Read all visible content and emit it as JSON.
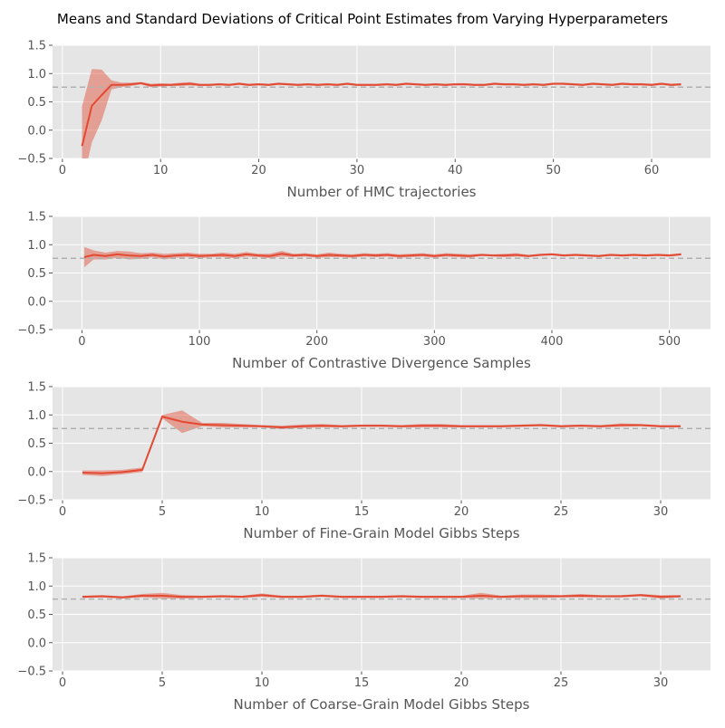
{
  "figure": {
    "title": "Means and Standard Deviations of Critical Point Estimates from Varying Hyperparameters"
  },
  "colors": {
    "line": "#e24a33",
    "band": "#e24a33",
    "reference": "#b0b0b0",
    "panel_bg": "#e5e5e5",
    "grid": "#ffffff",
    "tick_text": "#555555"
  },
  "chart_data": [
    {
      "type": "line",
      "title": "",
      "xlabel": "Number of HMC trajectories",
      "ylabel": "",
      "xlim": [
        -1,
        66
      ],
      "ylim": [
        -0.5,
        1.5
      ],
      "xticks": [
        0,
        10,
        20,
        30,
        40,
        50,
        60
      ],
      "yticks": [
        -0.5,
        0.0,
        0.5,
        1.0,
        1.5
      ],
      "ytick_labels": [
        "−0.5",
        "0.0",
        "0.5",
        "1.0",
        "1.5"
      ],
      "reference_line": 0.76,
      "grid": true,
      "x": [
        2,
        3,
        4,
        5,
        6,
        7,
        8,
        9,
        10,
        11,
        12,
        13,
        14,
        15,
        16,
        17,
        18,
        19,
        20,
        21,
        22,
        23,
        24,
        25,
        26,
        27,
        28,
        29,
        30,
        31,
        32,
        33,
        34,
        35,
        36,
        37,
        38,
        39,
        40,
        41,
        42,
        43,
        44,
        45,
        46,
        47,
        48,
        49,
        50,
        51,
        52,
        53,
        54,
        55,
        56,
        57,
        58,
        59,
        60,
        61,
        62,
        63
      ],
      "mean": [
        -0.28,
        0.43,
        0.62,
        0.8,
        0.8,
        0.81,
        0.83,
        0.79,
        0.8,
        0.8,
        0.81,
        0.82,
        0.8,
        0.8,
        0.81,
        0.8,
        0.82,
        0.8,
        0.81,
        0.8,
        0.82,
        0.81,
        0.8,
        0.81,
        0.8,
        0.81,
        0.8,
        0.82,
        0.8,
        0.8,
        0.8,
        0.81,
        0.8,
        0.82,
        0.81,
        0.8,
        0.81,
        0.8,
        0.81,
        0.81,
        0.8,
        0.8,
        0.82,
        0.81,
        0.81,
        0.8,
        0.81,
        0.8,
        0.82,
        0.82,
        0.81,
        0.8,
        0.82,
        0.81,
        0.8,
        0.82,
        0.81,
        0.81,
        0.8,
        0.82,
        0.8,
        0.81
      ],
      "std": [
        0.7,
        0.65,
        0.45,
        0.08,
        0.04,
        0.03,
        0.02,
        0.03,
        0.03,
        0.02,
        0.03,
        0.03,
        0.02,
        0.02,
        0.02,
        0.02,
        0.02,
        0.02,
        0.02,
        0.02,
        0.02,
        0.02,
        0.02,
        0.02,
        0.02,
        0.02,
        0.02,
        0.02,
        0.02,
        0.02,
        0.02,
        0.02,
        0.02,
        0.02,
        0.02,
        0.02,
        0.02,
        0.02,
        0.02,
        0.02,
        0.02,
        0.02,
        0.02,
        0.02,
        0.02,
        0.02,
        0.02,
        0.02,
        0.02,
        0.02,
        0.02,
        0.02,
        0.02,
        0.02,
        0.02,
        0.02,
        0.02,
        0.02,
        0.02,
        0.02,
        0.02,
        0.02
      ]
    },
    {
      "type": "line",
      "title": "",
      "xlabel": "Number of Contrastive Divergence Samples",
      "ylabel": "",
      "xlim": [
        -25,
        535
      ],
      "ylim": [
        -0.5,
        1.5
      ],
      "xticks": [
        0,
        100,
        200,
        300,
        400,
        500
      ],
      "yticks": [
        -0.5,
        0.0,
        0.5,
        1.0,
        1.5
      ],
      "ytick_labels": [
        "−0.5",
        "0.0",
        "0.5",
        "1.0",
        "1.5"
      ],
      "reference_line": 0.76,
      "grid": true,
      "x": [
        2,
        10,
        20,
        30,
        40,
        50,
        60,
        70,
        80,
        90,
        100,
        110,
        120,
        130,
        140,
        150,
        160,
        170,
        180,
        190,
        200,
        210,
        220,
        230,
        240,
        250,
        260,
        270,
        280,
        290,
        300,
        310,
        320,
        330,
        340,
        350,
        360,
        370,
        380,
        390,
        400,
        410,
        420,
        430,
        440,
        450,
        460,
        470,
        480,
        490,
        500,
        510
      ],
      "mean": [
        0.78,
        0.82,
        0.8,
        0.83,
        0.81,
        0.8,
        0.82,
        0.79,
        0.81,
        0.82,
        0.8,
        0.81,
        0.82,
        0.8,
        0.83,
        0.81,
        0.8,
        0.84,
        0.81,
        0.82,
        0.8,
        0.82,
        0.81,
        0.8,
        0.82,
        0.81,
        0.82,
        0.8,
        0.81,
        0.82,
        0.8,
        0.82,
        0.81,
        0.8,
        0.82,
        0.81,
        0.81,
        0.82,
        0.8,
        0.82,
        0.83,
        0.81,
        0.82,
        0.81,
        0.8,
        0.82,
        0.81,
        0.82,
        0.81,
        0.82,
        0.81,
        0.83
      ],
      "std": [
        0.18,
        0.08,
        0.06,
        0.06,
        0.07,
        0.05,
        0.04,
        0.05,
        0.04,
        0.04,
        0.04,
        0.03,
        0.04,
        0.04,
        0.04,
        0.03,
        0.04,
        0.05,
        0.03,
        0.03,
        0.03,
        0.04,
        0.03,
        0.03,
        0.03,
        0.03,
        0.03,
        0.03,
        0.03,
        0.03,
        0.03,
        0.03,
        0.03,
        0.03,
        0.02,
        0.02,
        0.03,
        0.03,
        0.02,
        0.02,
        0.02,
        0.02,
        0.02,
        0.02,
        0.02,
        0.02,
        0.02,
        0.02,
        0.02,
        0.02,
        0.02,
        0.02
      ]
    },
    {
      "type": "line",
      "title": "",
      "xlabel": "Number of Fine-Grain Model Gibbs Steps",
      "ylabel": "",
      "xlim": [
        -0.5,
        32.5
      ],
      "ylim": [
        -0.5,
        1.5
      ],
      "xticks": [
        0,
        5,
        10,
        15,
        20,
        25,
        30
      ],
      "yticks": [
        -0.5,
        0.0,
        0.5,
        1.0,
        1.5
      ],
      "ytick_labels": [
        "−0.5",
        "0.0",
        "0.5",
        "1.0",
        "1.5"
      ],
      "reference_line": 0.76,
      "grid": true,
      "x": [
        1,
        2,
        3,
        4,
        5,
        6,
        7,
        8,
        9,
        10,
        11,
        12,
        13,
        14,
        15,
        16,
        17,
        18,
        19,
        20,
        21,
        22,
        23,
        24,
        25,
        26,
        27,
        28,
        29,
        30,
        31
      ],
      "mean": [
        -0.02,
        -0.03,
        -0.01,
        0.03,
        0.97,
        0.88,
        0.83,
        0.82,
        0.81,
        0.8,
        0.78,
        0.8,
        0.81,
        0.8,
        0.81,
        0.81,
        0.8,
        0.81,
        0.81,
        0.8,
        0.8,
        0.8,
        0.81,
        0.82,
        0.8,
        0.81,
        0.8,
        0.82,
        0.82,
        0.8,
        0.8
      ],
      "std": [
        0.04,
        0.05,
        0.04,
        0.04,
        0.03,
        0.2,
        0.03,
        0.04,
        0.03,
        0.02,
        0.03,
        0.03,
        0.03,
        0.02,
        0.02,
        0.02,
        0.02,
        0.03,
        0.03,
        0.02,
        0.02,
        0.02,
        0.02,
        0.02,
        0.02,
        0.02,
        0.02,
        0.03,
        0.02,
        0.02,
        0.02
      ]
    },
    {
      "type": "line",
      "title": "",
      "xlabel": "Number of Coarse-Grain Model Gibbs Steps",
      "ylabel": "",
      "xlim": [
        -0.5,
        32.5
      ],
      "ylim": [
        -0.5,
        1.5
      ],
      "xticks": [
        0,
        5,
        10,
        15,
        20,
        25,
        30
      ],
      "yticks": [
        -0.5,
        0.0,
        0.5,
        1.0,
        1.5
      ],
      "ytick_labels": [
        "−0.5",
        "0.0",
        "0.5",
        "1.0",
        "1.5"
      ],
      "reference_line": 0.77,
      "grid": true,
      "x": [
        1,
        2,
        3,
        4,
        5,
        6,
        7,
        8,
        9,
        10,
        11,
        12,
        13,
        14,
        15,
        16,
        17,
        18,
        19,
        20,
        21,
        22,
        23,
        24,
        25,
        26,
        27,
        28,
        29,
        30,
        31
      ],
      "mean": [
        0.81,
        0.82,
        0.8,
        0.83,
        0.83,
        0.81,
        0.81,
        0.82,
        0.81,
        0.84,
        0.81,
        0.81,
        0.83,
        0.81,
        0.81,
        0.81,
        0.82,
        0.81,
        0.81,
        0.81,
        0.83,
        0.81,
        0.82,
        0.82,
        0.82,
        0.83,
        0.82,
        0.82,
        0.84,
        0.81,
        0.82
      ],
      "std": [
        0.02,
        0.02,
        0.02,
        0.03,
        0.05,
        0.03,
        0.02,
        0.02,
        0.02,
        0.03,
        0.02,
        0.02,
        0.02,
        0.02,
        0.02,
        0.02,
        0.02,
        0.02,
        0.02,
        0.02,
        0.05,
        0.02,
        0.03,
        0.03,
        0.02,
        0.03,
        0.02,
        0.02,
        0.02,
        0.03,
        0.02
      ]
    }
  ]
}
